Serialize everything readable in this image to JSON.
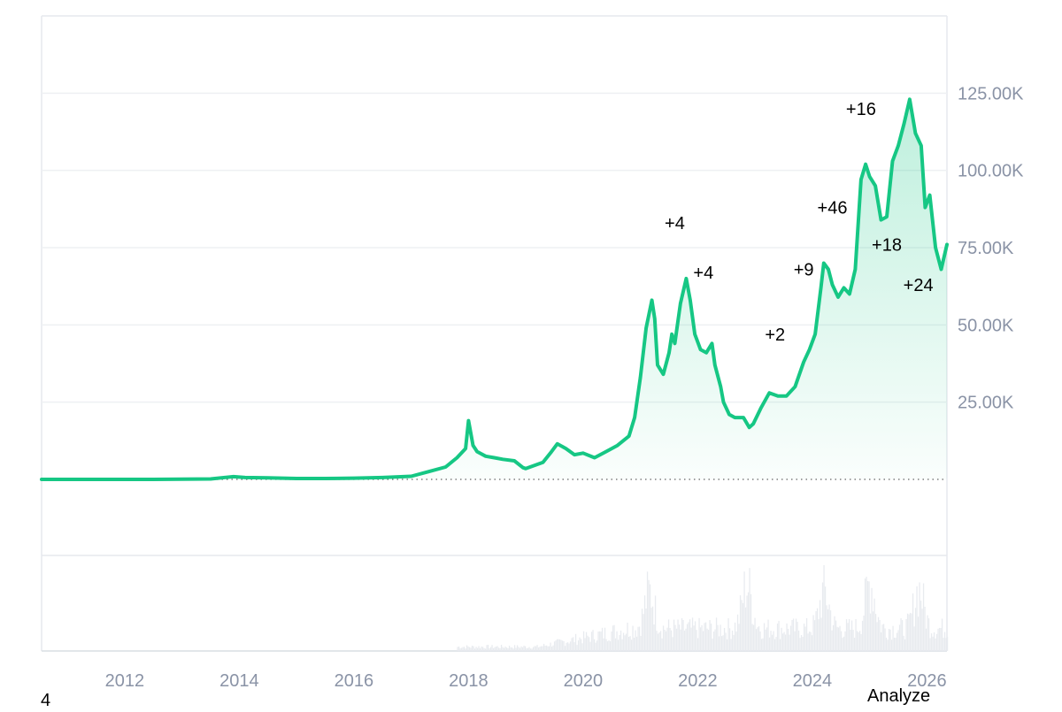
{
  "chart_data": {
    "type": "area",
    "line_color": "#16c784",
    "fill_color": "#16c784",
    "grid": true,
    "y_tick_labels": [
      {
        "value": 25000,
        "label": "25.00K"
      },
      {
        "value": 50000,
        "label": "50.00K"
      },
      {
        "value": 75000,
        "label": "75.00K"
      },
      {
        "value": 100000,
        "label": "100.00K"
      },
      {
        "value": 125000,
        "label": "125.00K"
      }
    ],
    "x_tick_labels": [
      {
        "value": 2012,
        "label": "2012"
      },
      {
        "value": 2014,
        "label": "2014"
      },
      {
        "value": 2016,
        "label": "2016"
      },
      {
        "value": 2018,
        "label": "2018"
      },
      {
        "value": 2020,
        "label": "2020"
      },
      {
        "value": 2022,
        "label": "2022"
      },
      {
        "value": 2024,
        "label": "2024"
      },
      {
        "value": 2026,
        "label": "2026"
      }
    ],
    "xlim": [
      2010.55,
      2026.35
    ],
    "ylim": [
      0,
      150000
    ],
    "baseline": 0,
    "series": [
      {
        "x": [
          2010.55,
          2011.5,
          2012.5,
          2013.5,
          2013.9,
          2014.1,
          2014.5,
          2015.0,
          2015.5,
          2016.0,
          2016.5,
          2017.0,
          2017.3,
          2017.6,
          2017.8,
          2017.95,
          2018.0,
          2018.08,
          2018.15,
          2018.3,
          2018.45,
          2018.6,
          2018.8,
          2018.95,
          2019.0,
          2019.3,
          2019.45,
          2019.55,
          2019.7,
          2019.85,
          2020.0,
          2020.2,
          2020.4,
          2020.6,
          2020.8,
          2020.9,
          2021.0,
          2021.1,
          2021.2,
          2021.25,
          2021.3,
          2021.4,
          2021.5,
          2021.55,
          2021.6,
          2021.7,
          2021.8,
          2021.87,
          2021.95,
          2022.05,
          2022.15,
          2022.25,
          2022.3,
          2022.4,
          2022.45,
          2022.55,
          2022.65,
          2022.8,
          2022.9,
          2022.97,
          2023.1,
          2023.25,
          2023.4,
          2023.55,
          2023.7,
          2023.85,
          2023.95,
          2024.05,
          2024.15,
          2024.2,
          2024.28,
          2024.35,
          2024.45,
          2024.55,
          2024.65,
          2024.75,
          2024.85,
          2024.93,
          2025.0,
          2025.1,
          2025.2,
          2025.3,
          2025.4,
          2025.5,
          2025.6,
          2025.7,
          2025.8,
          2025.9,
          2025.97,
          2026.05,
          2026.15,
          2026.25,
          2026.35
        ],
        "y": [
          0,
          10,
          10,
          150,
          900,
          600,
          500,
          300,
          300,
          400,
          600,
          1000,
          2500,
          4000,
          7000,
          10000,
          19000,
          11000,
          9000,
          7500,
          7000,
          6500,
          6000,
          3800,
          3500,
          5500,
          9000,
          11500,
          10000,
          8000,
          8500,
          7000,
          9000,
          11000,
          14000,
          20000,
          33000,
          49000,
          58000,
          52000,
          37000,
          34000,
          41000,
          47000,
          44000,
          57000,
          65000,
          58000,
          47000,
          42000,
          41000,
          44000,
          37000,
          30000,
          25000,
          21000,
          20000,
          20000,
          16800,
          18000,
          23000,
          28000,
          27000,
          27000,
          30000,
          38000,
          42000,
          47000,
          62000,
          70000,
          68000,
          63000,
          59000,
          62000,
          60000,
          68000,
          97000,
          102000,
          98000,
          95000,
          84000,
          85000,
          103000,
          108000,
          115000,
          123000,
          112000,
          108000,
          88000,
          92000,
          75000,
          68000,
          76000
        ]
      }
    ],
    "volume": {
      "color": "#e8ebef",
      "x_start": 2017.8,
      "x_end": 2026.35,
      "peaks": [
        {
          "x": 2021.15,
          "v": 0.8
        },
        {
          "x": 2022.85,
          "v": 0.95
        },
        {
          "x": 2024.2,
          "v": 0.8
        },
        {
          "x": 2025.0,
          "v": 1.0
        },
        {
          "x": 2025.85,
          "v": 0.85
        }
      ]
    },
    "annotations": [
      {
        "x": 2021.6,
        "y": 83000,
        "text": "+4"
      },
      {
        "x": 2022.1,
        "y": 67000,
        "text": "+4"
      },
      {
        "x": 2023.35,
        "y": 47000,
        "text": "+2"
      },
      {
        "x": 2023.85,
        "y": 68000,
        "text": "+9"
      },
      {
        "x": 2024.35,
        "y": 88000,
        "text": "+46"
      },
      {
        "x": 2024.85,
        "y": 120000,
        "text": "+16"
      },
      {
        "x": 2025.3,
        "y": 76000,
        "text": "+18"
      },
      {
        "x": 2025.85,
        "y": 63000,
        "text": "+24"
      }
    ]
  },
  "ui": {
    "analyze_label": "Analyze",
    "corner_label": "4"
  }
}
